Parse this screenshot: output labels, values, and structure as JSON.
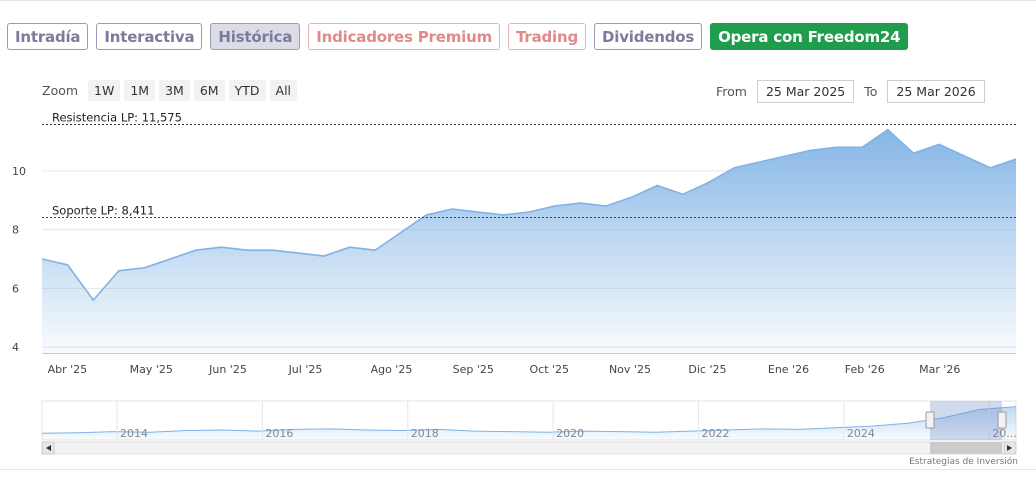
{
  "tabs": [
    {
      "label": "Intradía",
      "style": "normal"
    },
    {
      "label": "Interactiva",
      "style": "normal"
    },
    {
      "label": "Histórica",
      "style": "active"
    },
    {
      "label": "Indicadores Premium",
      "style": "red"
    },
    {
      "label": "Trading",
      "style": "red"
    },
    {
      "label": "Dividendos",
      "style": "normal"
    },
    {
      "label": "Opera con Freedom24",
      "style": "cta"
    }
  ],
  "zoom": {
    "label": "Zoom",
    "buttons": [
      "1W",
      "1M",
      "3M",
      "6M",
      "YTD",
      "All"
    ]
  },
  "range": {
    "from_label": "From",
    "from_value": "25 Mar 2025",
    "to_label": "To",
    "to_value": "25 Mar 2026"
  },
  "credit": "Estrategias de Inversión",
  "colors": {
    "line": "#7fb2e5",
    "area_top": "#7fb2e5",
    "cta": "#1f9d4d"
  },
  "chart_data": {
    "type": "area",
    "title": "",
    "xlabel": "",
    "ylabel": "",
    "ylim": [
      3.8,
      11.9
    ],
    "yticks": [
      4,
      6,
      8,
      10
    ],
    "xticks": [
      "Abr '25",
      "May '25",
      "Jun '25",
      "Jul '25",
      "Ago '25",
      "Sep '25",
      "Oct '25",
      "Nov '25",
      "Dic '25",
      "Ene '26",
      "Feb '26",
      "Mar '26"
    ],
    "xtick_index": [
      1,
      4.2,
      7.3,
      10.4,
      13.6,
      16.8,
      19.8,
      22.9,
      26,
      29.1,
      32.1,
      35
    ],
    "reference_lines": [
      {
        "label": "Resistencia LP: 11,575",
        "value": 11.575
      },
      {
        "label": "Soporte LP: 8,411",
        "value": 8.411
      }
    ],
    "series": [
      {
        "values": [
          7.0,
          6.8,
          5.6,
          6.6,
          6.7,
          7.0,
          7.3,
          7.4,
          7.3,
          7.3,
          7.2,
          7.1,
          7.4,
          7.3,
          7.9,
          8.5,
          8.7,
          8.6,
          8.5,
          8.6,
          8.8,
          8.9,
          8.8,
          9.1,
          9.5,
          9.2,
          9.6,
          10.1,
          10.3,
          10.5,
          10.7,
          10.8,
          10.8,
          11.4,
          10.6,
          10.9,
          10.5,
          10.1,
          10.4
        ]
      }
    ],
    "navigator": {
      "xticks": [
        "2014",
        "2016",
        "2018",
        "2020",
        "2022",
        "2024",
        "20..."
      ],
      "values": [
        6.2,
        6.3,
        6.5,
        6.4,
        6.7,
        6.8,
        6.6,
        6.9,
        7.0,
        6.8,
        6.7,
        6.9,
        6.6,
        6.5,
        6.4,
        6.6,
        6.5,
        6.4,
        6.6,
        6.8,
        7.0,
        6.9,
        7.2,
        7.5,
        8.0,
        9.0,
        10.5,
        11.0
      ]
    }
  }
}
